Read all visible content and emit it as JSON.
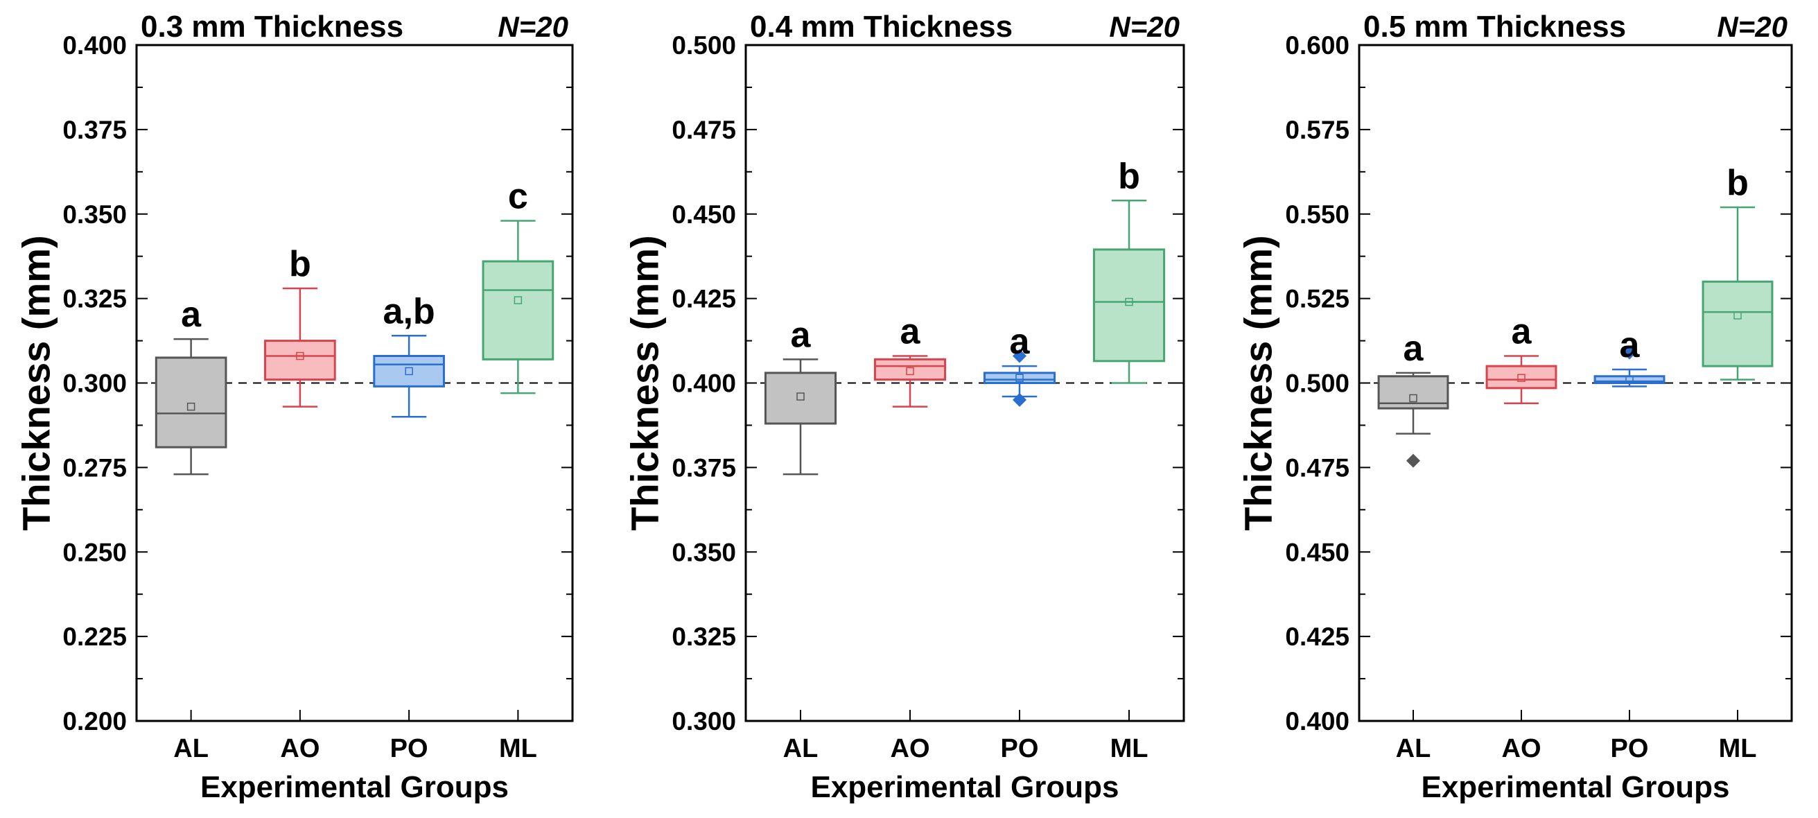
{
  "chart_data": [
    {
      "type": "box",
      "title": "0.3 mm Thickness",
      "n_label": "N=20",
      "xlabel": "Experimental Groups",
      "ylabel": "Thickness (mm)",
      "ylim": [
        0.2,
        0.4
      ],
      "yticks": [
        "0.200",
        "0.225",
        "0.250",
        "0.275",
        "0.300",
        "0.325",
        "0.350",
        "0.375",
        "0.400"
      ],
      "reference_line": 0.3,
      "categories": [
        "AL",
        "AO",
        "PO",
        "ML"
      ],
      "groups": [
        {
          "name": "AL",
          "min": 0.273,
          "q1": 0.281,
          "median": 0.291,
          "q3": 0.3075,
          "max": 0.313,
          "mean": 0.293,
          "outliers": [],
          "letter": "a"
        },
        {
          "name": "AO",
          "min": 0.293,
          "q1": 0.301,
          "median": 0.308,
          "q3": 0.3125,
          "max": 0.328,
          "mean": 0.308,
          "outliers": [],
          "letter": "b"
        },
        {
          "name": "PO",
          "min": 0.29,
          "q1": 0.299,
          "median": 0.3055,
          "q3": 0.308,
          "max": 0.314,
          "mean": 0.3035,
          "outliers": [],
          "letter": "a,b"
        },
        {
          "name": "ML",
          "min": 0.297,
          "q1": 0.307,
          "median": 0.3275,
          "q3": 0.336,
          "max": 0.348,
          "mean": 0.3245,
          "outliers": [],
          "letter": "c"
        }
      ]
    },
    {
      "type": "box",
      "title": "0.4 mm Thickness",
      "n_label": "N=20",
      "xlabel": "Experimental Groups",
      "ylabel": "Thickness (mm)",
      "ylim": [
        0.3,
        0.5
      ],
      "yticks": [
        "0.300",
        "0.325",
        "0.350",
        "0.375",
        "0.400",
        "0.425",
        "0.450",
        "0.475",
        "0.500"
      ],
      "reference_line": 0.4,
      "categories": [
        "AL",
        "AO",
        "PO",
        "ML"
      ],
      "groups": [
        {
          "name": "AL",
          "min": 0.373,
          "q1": 0.388,
          "median": 0.403,
          "q3": 0.403,
          "max": 0.407,
          "mean": 0.396,
          "outliers": [],
          "letter": "a"
        },
        {
          "name": "AO",
          "min": 0.393,
          "q1": 0.401,
          "median": 0.405,
          "q3": 0.407,
          "max": 0.408,
          "mean": 0.4035,
          "outliers": [],
          "letter": "a"
        },
        {
          "name": "PO",
          "min": 0.396,
          "q1": 0.4,
          "median": 0.401,
          "q3": 0.403,
          "max": 0.405,
          "mean": 0.4015,
          "outliers": [
            0.408,
            0.395
          ],
          "letter": "a"
        },
        {
          "name": "ML",
          "min": 0.4,
          "q1": 0.4065,
          "median": 0.424,
          "q3": 0.4395,
          "max": 0.454,
          "mean": 0.424,
          "outliers": [],
          "letter": "b"
        }
      ]
    },
    {
      "type": "box",
      "title": "0.5 mm Thickness",
      "n_label": "N=20",
      "xlabel": "Experimental Groups",
      "ylabel": "Thickness (mm)",
      "ylim": [
        0.4,
        0.6
      ],
      "yticks": [
        "0.400",
        "0.425",
        "0.450",
        "0.475",
        "0.500",
        "0.525",
        "0.550",
        "0.575",
        "0.600"
      ],
      "reference_line": 0.5,
      "categories": [
        "AL",
        "AO",
        "PO",
        "ML"
      ],
      "groups": [
        {
          "name": "AL",
          "min": 0.485,
          "q1": 0.4925,
          "median": 0.494,
          "q3": 0.502,
          "max": 0.503,
          "mean": 0.4955,
          "outliers": [
            0.477
          ],
          "letter": "a"
        },
        {
          "name": "AO",
          "min": 0.494,
          "q1": 0.4985,
          "median": 0.501,
          "q3": 0.505,
          "max": 0.508,
          "mean": 0.5015,
          "outliers": [],
          "letter": "a"
        },
        {
          "name": "PO",
          "min": 0.499,
          "q1": 0.5,
          "median": 0.5005,
          "q3": 0.502,
          "max": 0.504,
          "mean": 0.501,
          "outliers": [
            0.509
          ],
          "letter": "a"
        },
        {
          "name": "ML",
          "min": 0.501,
          "q1": 0.505,
          "median": 0.521,
          "q3": 0.53,
          "max": 0.552,
          "mean": 0.52,
          "outliers": [],
          "letter": "b"
        }
      ]
    }
  ],
  "colors": {
    "AL": {
      "fill": "#c2c2c2",
      "stroke": "#555555"
    },
    "AO": {
      "fill": "#f8bcbf",
      "stroke": "#d9434e"
    },
    "PO": {
      "fill": "#aac9f1",
      "stroke": "#2a6fcf"
    },
    "ML": {
      "fill": "#b8e3c9",
      "stroke": "#46a672"
    }
  }
}
